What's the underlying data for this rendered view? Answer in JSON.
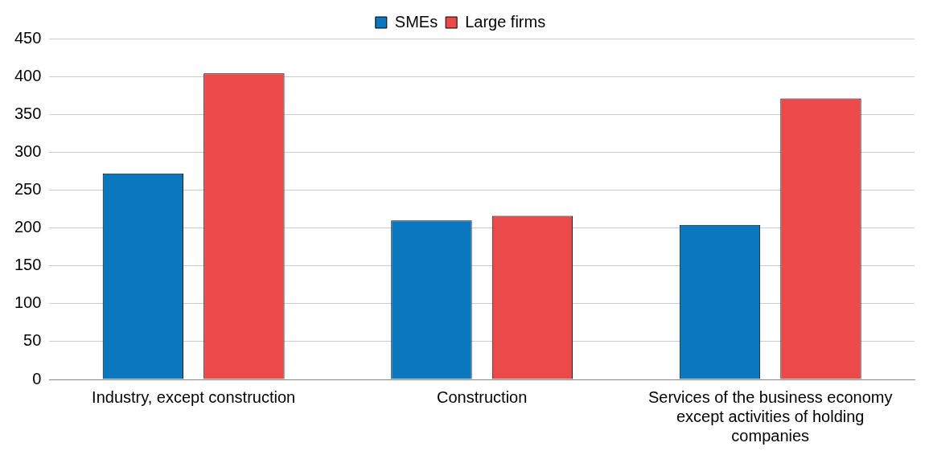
{
  "chart_data": {
    "type": "bar",
    "categories": [
      "Industry, except construction",
      "Construction",
      "Services of the business economy except activities of holding companies"
    ],
    "series": [
      {
        "name": "SMEs",
        "color": "#0b77be",
        "values": [
          272,
          210,
          204
        ]
      },
      {
        "name": "Large firms",
        "color": "#ec4a4a",
        "values": [
          404,
          216,
          371
        ]
      }
    ],
    "ylim": [
      0,
      450
    ],
    "yticks": [
      0,
      50,
      100,
      150,
      200,
      250,
      300,
      350,
      400,
      450
    ],
    "grid": "y",
    "legend": "top"
  }
}
